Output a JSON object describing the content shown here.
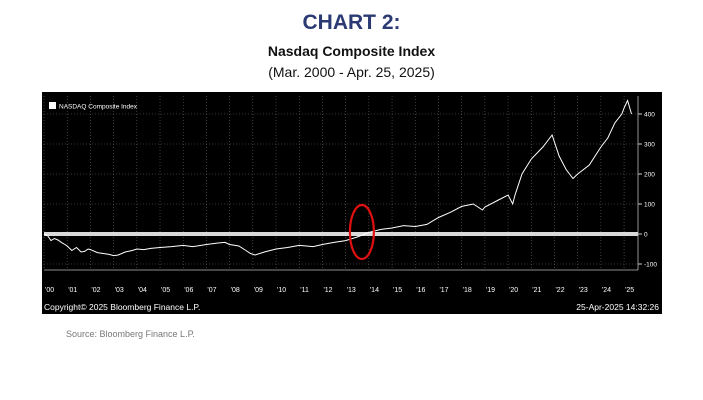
{
  "header": {
    "title": "CHART 2:",
    "subtitle": "Nasdaq Composite Index",
    "date_range": "(Mar. 2000 - Apr. 25, 2025)"
  },
  "footer": {
    "copyright": "Copyright© 2025 Bloomberg Finance L.P.",
    "timestamp": "25-Apr-2025 14:32:26",
    "source": "Source: Bloomberg Finance L.P."
  },
  "colors": {
    "title": "#2b3a73",
    "background": "#000000",
    "line": "#ffffff",
    "zero_line": "#d9d9d9",
    "highlight_circle": "#e01010"
  },
  "chart_data": {
    "type": "line",
    "legend": "NASDAQ Composite Index",
    "legend_position": "top-left",
    "grid": true,
    "ylim": [
      -120,
      460
    ],
    "yticks": [
      400,
      300,
      200,
      100,
      0,
      -100
    ],
    "ytick_labels": [
      "400",
      "300",
      "200",
      "100",
      "0",
      "-100"
    ],
    "xlim": [
      2000.0,
      2025.6
    ],
    "xticks": [
      2000,
      2001,
      2002,
      2003,
      2004,
      2005,
      2006,
      2007,
      2008,
      2009,
      2010,
      2011,
      2012,
      2013,
      2014,
      2015,
      2016,
      2017,
      2018,
      2019,
      2020,
      2021,
      2022,
      2023,
      2024,
      2025
    ],
    "xtick_labels": [
      "'00",
      "'01",
      "'02",
      "'03",
      "'04",
      "'05",
      "'06",
      "'07",
      "'08",
      "'09",
      "'10",
      "'11",
      "'12",
      "'13",
      "'14",
      "'15",
      "'16",
      "'17",
      "'18",
      "'19",
      "'20",
      "'21",
      "'22",
      "'23",
      "'24",
      "'25"
    ],
    "reference_line": 0,
    "highlight": {
      "x": 2013.7,
      "y": 0
    },
    "series": [
      {
        "name": "NASDAQ Composite Index",
        "x": [
          2000.0,
          2000.15,
          2000.3,
          2000.45,
          2000.6,
          2000.75,
          2000.9,
          2001.0,
          2001.2,
          2001.4,
          2001.6,
          2001.75,
          2001.9,
          2002.0,
          2002.3,
          2002.55,
          2002.8,
          2003.0,
          2003.2,
          2003.5,
          2003.8,
          2004.0,
          2004.3,
          2004.6,
          2005.0,
          2005.5,
          2006.0,
          2006.4,
          2006.6,
          2007.0,
          2007.5,
          2007.8,
          2008.0,
          2008.4,
          2008.7,
          2008.9,
          2009.1,
          2009.5,
          2010.0,
          2010.5,
          2011.0,
          2011.6,
          2012.0,
          2012.5,
          2013.0,
          2013.5,
          2014.0,
          2014.5,
          2015.0,
          2015.5,
          2016.0,
          2016.5,
          2017.0,
          2017.5,
          2018.0,
          2018.5,
          2018.9,
          2019.0,
          2019.5,
          2020.0,
          2020.2,
          2020.3,
          2020.6,
          2021.0,
          2021.5,
          2021.9,
          2022.2,
          2022.5,
          2022.8,
          2023.0,
          2023.5,
          2024.0,
          2024.3,
          2024.6,
          2024.9,
          2025.0,
          2025.15,
          2025.32
        ],
        "values": [
          0,
          -5,
          -22,
          -15,
          -20,
          -28,
          -35,
          -40,
          -55,
          -45,
          -60,
          -58,
          -50,
          -52,
          -62,
          -65,
          -68,
          -72,
          -70,
          -60,
          -55,
          -50,
          -52,
          -48,
          -45,
          -42,
          -38,
          -42,
          -40,
          -35,
          -30,
          -28,
          -35,
          -40,
          -55,
          -65,
          -70,
          -60,
          -50,
          -45,
          -38,
          -42,
          -35,
          -28,
          -22,
          -10,
          5,
          15,
          20,
          28,
          25,
          32,
          55,
          72,
          92,
          100,
          80,
          90,
          110,
          130,
          100,
          130,
          200,
          250,
          290,
          330,
          260,
          215,
          185,
          200,
          230,
          290,
          320,
          370,
          400,
          420,
          445,
          400
        ]
      }
    ]
  }
}
